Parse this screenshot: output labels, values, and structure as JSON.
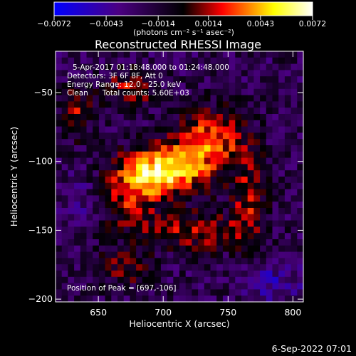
{
  "chart_data": {
    "type": "heatmap",
    "title": "Reconstructed RHESSI Image",
    "xlabel": "Heliocentric X (arcsec)",
    "ylabel": "Heliocentric Y (arcsec)",
    "xlim": [
      617,
      808
    ],
    "ylim": [
      -202,
      -20
    ],
    "x_ticks": [
      650,
      700,
      750,
      800
    ],
    "x_tick_labels": [
      "650",
      "700",
      "750",
      "800"
    ],
    "y_ticks": [
      -50,
      -100,
      -150,
      -200
    ],
    "y_tick_labels": [
      "−50",
      "−100",
      "−150",
      "−200"
    ],
    "colorbar": {
      "min": -0.0072,
      "max": 0.0072,
      "ticks": [
        -0.0072,
        -0.0043,
        -0.0014,
        0.0014,
        0.0043,
        0.0072
      ],
      "tick_labels": [
        "−0.0072",
        "−0.0043",
        "−0.0014",
        "0.0014",
        "0.0043",
        "0.0072"
      ],
      "unit_label": "(photons cm⁻² s⁻¹ asec⁻²)",
      "colors": [
        "#0000ff",
        "#4b0082",
        "#000000",
        "#ff0000",
        "#ffff00",
        "#ffffff"
      ]
    },
    "annotations": [
      "5-Apr-2017 01:18:48.000 to 01:24:48.000",
      "Detectors: 3F 6F 8F, Att 0",
      "Energy Range: 12.0 - 25.0 keV",
      "Clean      Total counts: 5.60E+03",
      "Position of Peak = [697,-106]"
    ],
    "peak_position": [
      697,
      -106
    ],
    "footer_date": "6-Sep-2022 07:01"
  }
}
